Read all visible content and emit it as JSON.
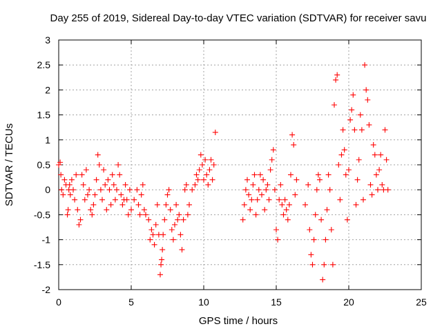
{
  "chart_data": {
    "type": "scatter",
    "title": "Day 255 of 2019, Sidereal Day-to-day VTEC variation (SDTVAR) for receiver savu",
    "xlabel": "GPS time / hours",
    "ylabel": "SDTVAR / TECUs",
    "xlim": [
      0,
      25
    ],
    "ylim": [
      -2,
      3
    ],
    "xticks": [
      0,
      5,
      10,
      15,
      20,
      25
    ],
    "yticks": [
      -2,
      -1.5,
      -1,
      -0.5,
      0,
      0.5,
      1,
      1.5,
      2,
      2.5,
      3
    ],
    "xtick_labels": [
      "0",
      "5",
      "10",
      "15",
      "20",
      "25"
    ],
    "ytick_labels": [
      "-2",
      "-1.5",
      "-1",
      "-0.5",
      "0",
      "0.5",
      "1",
      "1.5",
      "2",
      "2.5",
      "3"
    ],
    "grid": true,
    "marker": "+",
    "marker_color": "#ff0000",
    "series": [
      {
        "name": "SDTVAR",
        "x": [
          0.0,
          0.1,
          0.15,
          0.2,
          0.3,
          0.4,
          0.5,
          0.6,
          0.65,
          0.7,
          0.75,
          0.8,
          0.9,
          1.0,
          1.1,
          1.2,
          1.3,
          1.4,
          1.5,
          1.6,
          1.7,
          1.8,
          1.9,
          2.0,
          2.1,
          2.2,
          2.3,
          2.4,
          2.5,
          2.6,
          2.7,
          2.8,
          2.9,
          3.0,
          3.1,
          3.2,
          3.3,
          3.4,
          3.5,
          3.6,
          3.7,
          3.8,
          3.9,
          4.0,
          4.1,
          4.2,
          4.3,
          4.4,
          4.5,
          4.6,
          4.7,
          4.8,
          4.9,
          5.0,
          5.2,
          5.4,
          5.5,
          5.6,
          5.7,
          5.8,
          5.9,
          6.0,
          6.2,
          6.3,
          6.4,
          6.5,
          6.6,
          6.7,
          6.8,
          6.9,
          7.0,
          7.05,
          7.1,
          7.15,
          7.2,
          7.3,
          7.4,
          7.5,
          7.6,
          7.7,
          7.8,
          7.9,
          8.0,
          8.1,
          8.2,
          8.3,
          8.4,
          8.5,
          8.6,
          8.7,
          8.8,
          8.9,
          9.0,
          9.2,
          9.4,
          9.5,
          9.6,
          9.7,
          9.8,
          9.9,
          10.0,
          10.1,
          10.2,
          10.3,
          10.4,
          10.5,
          10.6,
          10.7,
          10.8,
          12.7,
          12.8,
          12.9,
          13.0,
          13.1,
          13.2,
          13.3,
          13.4,
          13.5,
          13.6,
          13.7,
          13.8,
          13.9,
          14.0,
          14.1,
          14.2,
          14.3,
          14.4,
          14.5,
          14.6,
          14.7,
          14.8,
          14.9,
          15.0,
          15.1,
          15.2,
          15.3,
          15.4,
          15.5,
          15.6,
          15.7,
          15.8,
          15.9,
          16.0,
          16.1,
          16.2,
          16.3,
          16.4,
          17.0,
          17.2,
          17.3,
          17.4,
          17.5,
          17.6,
          17.7,
          17.8,
          17.9,
          18.0,
          18.1,
          18.2,
          18.3,
          18.4,
          18.5,
          18.6,
          18.7,
          18.8,
          18.9,
          19.0,
          19.1,
          19.2,
          19.3,
          19.4,
          19.5,
          19.6,
          19.7,
          19.8,
          19.9,
          20.0,
          20.1,
          20.2,
          20.3,
          20.4,
          20.5,
          20.6,
          20.7,
          20.8,
          20.9,
          21.0,
          21.1,
          21.2,
          21.3,
          21.4,
          21.5,
          21.6,
          21.7,
          21.8,
          21.9,
          22.0,
          22.1,
          22.2,
          22.3,
          22.4,
          22.5,
          22.6,
          22.7
        ],
        "y": [
          0.5,
          0.55,
          0.3,
          0.0,
          -0.1,
          0.2,
          0.1,
          -0.5,
          -0.4,
          0.0,
          0.1,
          -0.1,
          0.2,
          0.0,
          -0.2,
          0.3,
          -0.4,
          -0.7,
          -0.6,
          0.3,
          0.1,
          -0.2,
          0.4,
          -0.1,
          0.0,
          -0.4,
          -0.5,
          -0.3,
          -0.1,
          0.2,
          0.7,
          0.5,
          0.0,
          -0.2,
          0.4,
          0.1,
          -0.4,
          0.2,
          0.0,
          -0.3,
          0.3,
          0.1,
          -0.2,
          0.0,
          0.5,
          0.3,
          -0.1,
          -0.3,
          -0.2,
          0.1,
          -0.2,
          -0.5,
          0.0,
          -0.4,
          -0.2,
          0.0,
          -0.3,
          -0.5,
          -0.1,
          0.1,
          -0.4,
          -0.5,
          -0.6,
          -1.0,
          -0.8,
          -0.9,
          -1.1,
          -0.7,
          -0.3,
          -0.9,
          -1.7,
          -1.5,
          -1.4,
          -1.2,
          -0.9,
          -0.6,
          -0.3,
          -0.1,
          0.0,
          -0.4,
          -0.8,
          -1.0,
          -0.7,
          -0.3,
          -0.6,
          -0.5,
          -0.9,
          -1.2,
          -0.6,
          0.0,
          0.1,
          -0.5,
          -0.3,
          0.0,
          0.1,
          0.3,
          0.2,
          0.4,
          0.7,
          0.5,
          0.2,
          0.6,
          0.3,
          0.1,
          0.4,
          0.6,
          0.2,
          0.5,
          1.15,
          -0.6,
          -0.3,
          0.0,
          0.2,
          -0.1,
          -0.4,
          -0.2,
          0.1,
          0.3,
          -0.5,
          -0.2,
          0.0,
          0.3,
          -0.1,
          0.2,
          -0.4,
          0.0,
          0.1,
          -0.2,
          0.4,
          0.6,
          0.8,
          0.0,
          -0.8,
          -1.0,
          -0.2,
          0.1,
          -0.3,
          -0.5,
          -0.2,
          -0.4,
          -0.6,
          -0.3,
          0.3,
          1.1,
          0.9,
          -0.1,
          0.2,
          -0.3,
          0.1,
          -0.8,
          -1.3,
          -1.5,
          -1.0,
          -0.5,
          0.0,
          0.3,
          0.2,
          -0.6,
          -1.8,
          -1.5,
          -1.0,
          -0.4,
          0.3,
          0.0,
          -0.8,
          -1.5,
          1.7,
          2.2,
          2.3,
          0.5,
          -0.2,
          0.7,
          1.2,
          0.8,
          0.3,
          -0.6,
          0.4,
          1.4,
          1.6,
          1.9,
          1.2,
          -0.3,
          0.2,
          0.6,
          1.5,
          1.2,
          -0.2,
          2.5,
          2.0,
          1.8,
          1.3,
          0.1,
          -0.1,
          0.9,
          0.7,
          0.3,
          0.0,
          0.4,
          0.7,
          0.1,
          0.0,
          1.2,
          0.6,
          0.0
        ]
      }
    ]
  }
}
